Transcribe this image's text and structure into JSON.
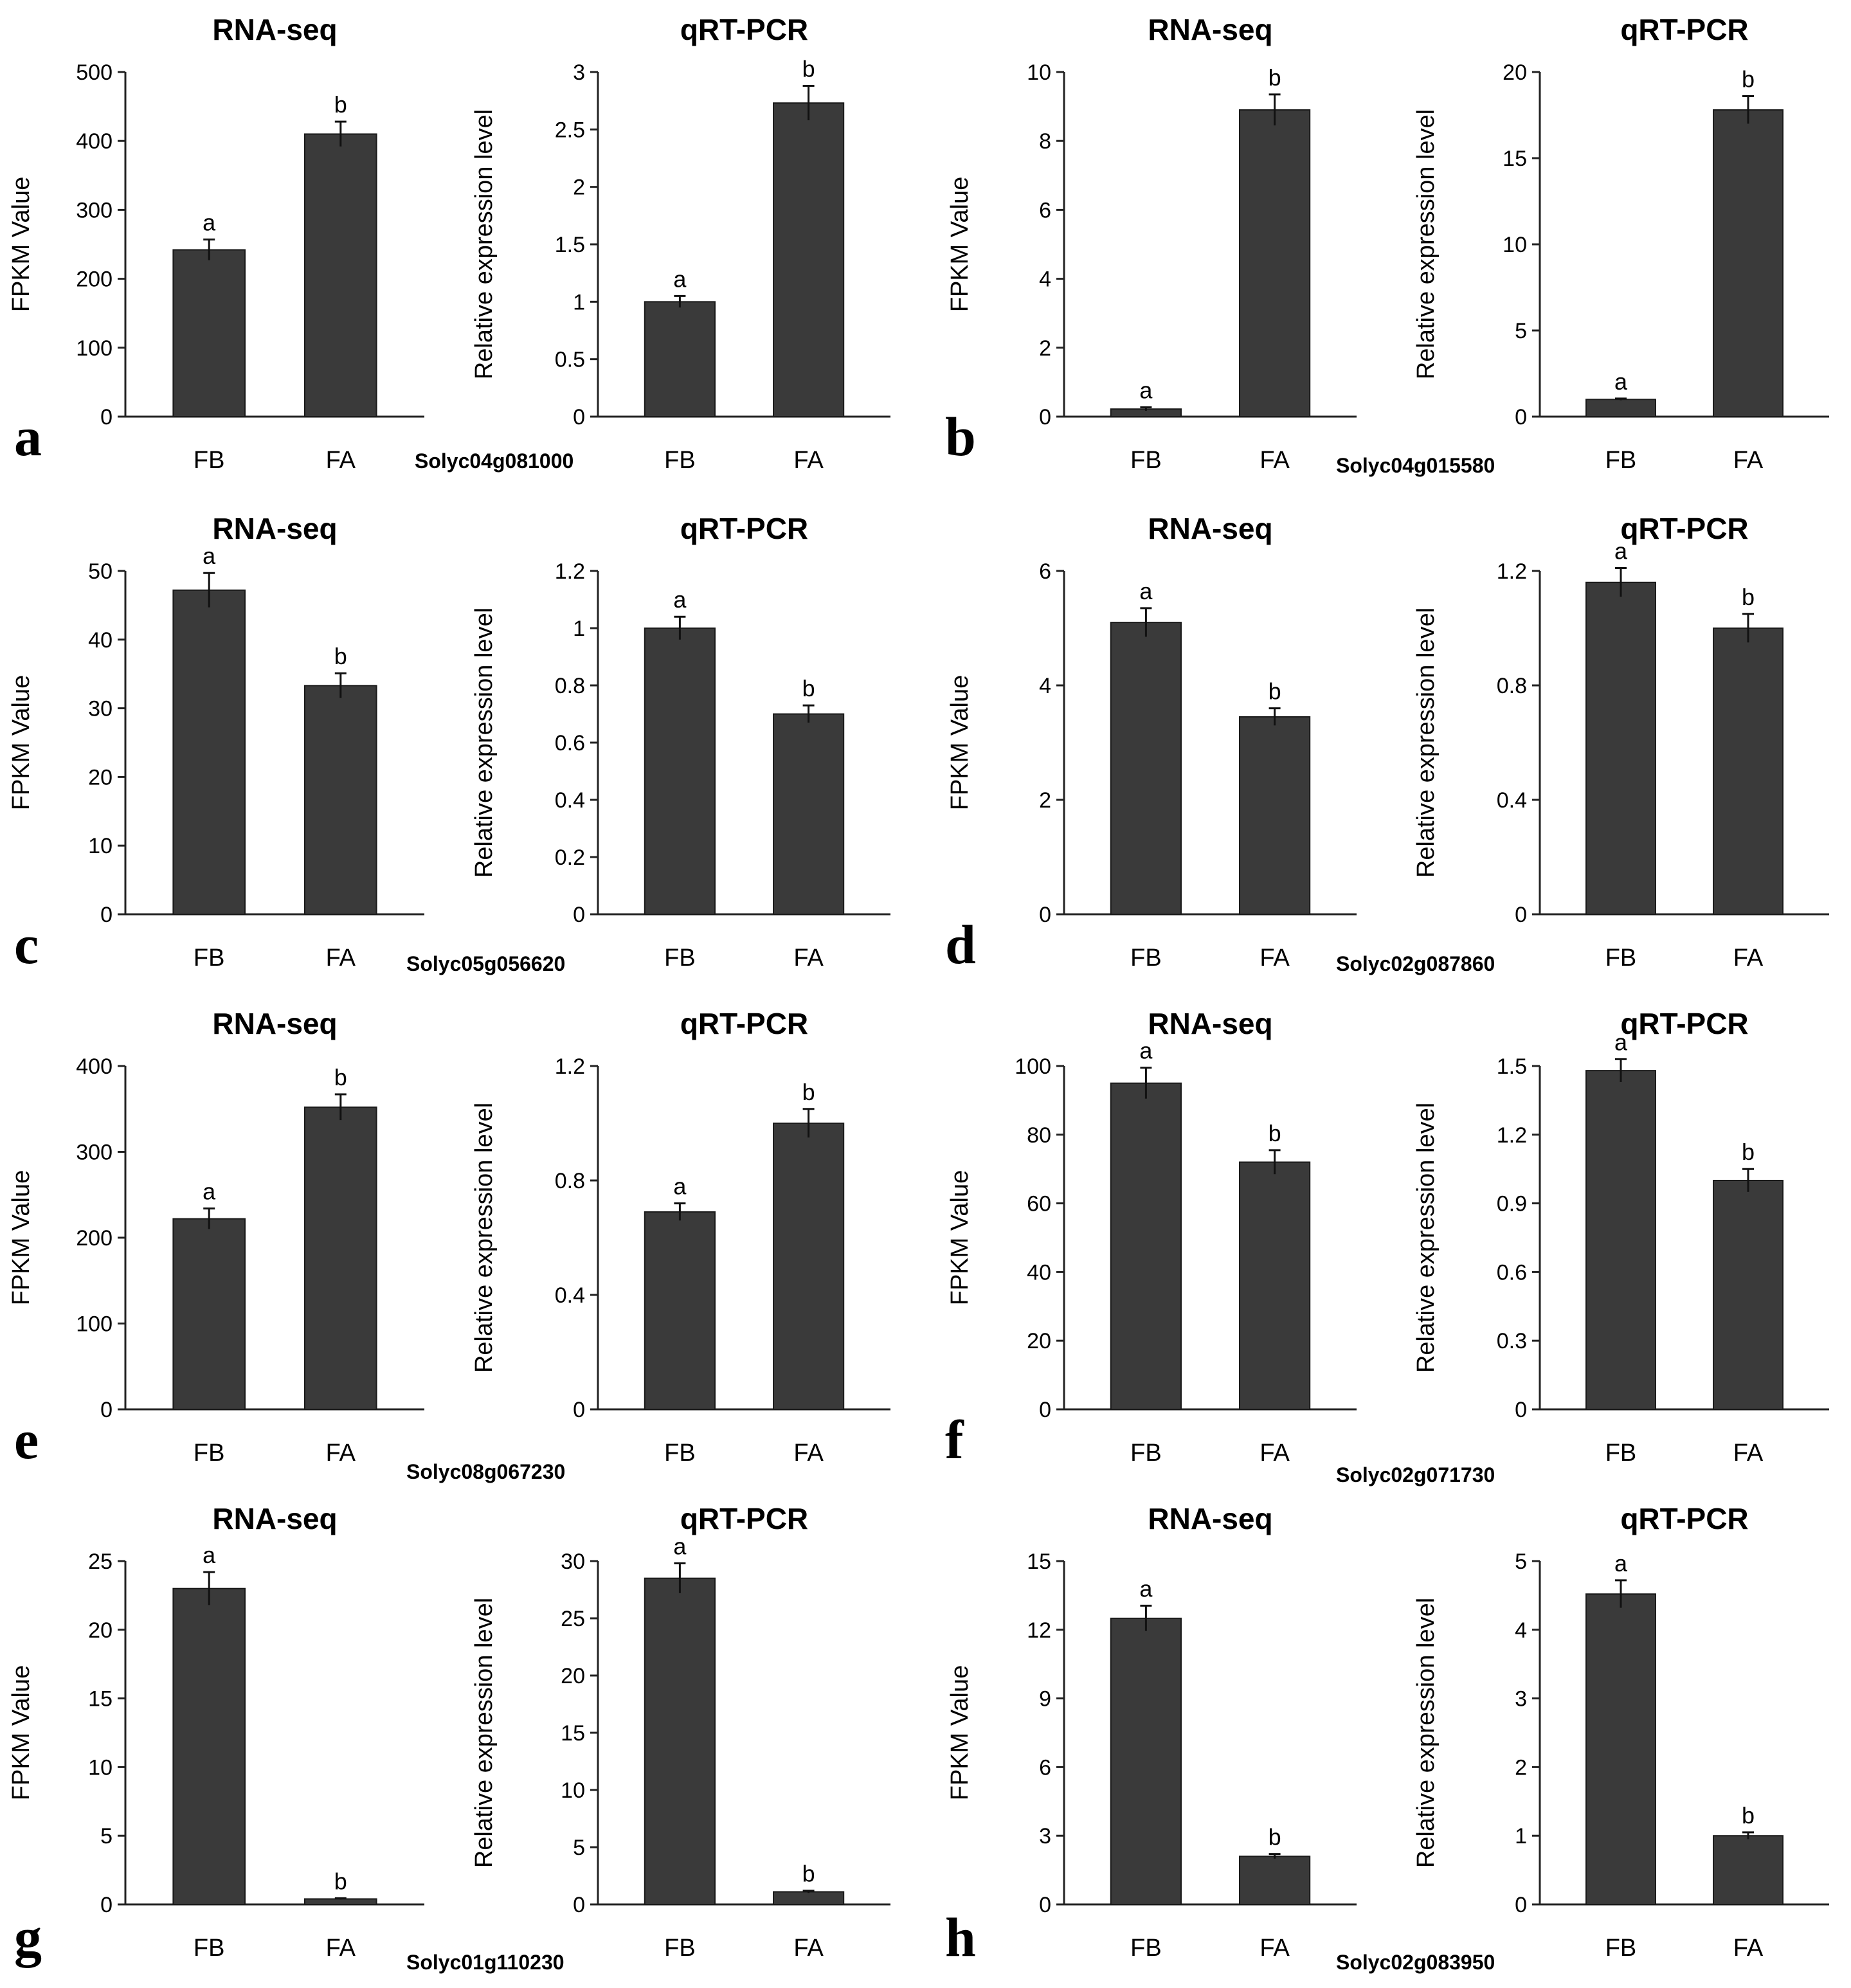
{
  "figure": {
    "panels": [
      {
        "letter": "a",
        "gene": "Solyc04g081000"
      },
      {
        "letter": "b",
        "gene": "Solyc04g015580"
      },
      {
        "letter": "c",
        "gene": "Solyc05g056620"
      },
      {
        "letter": "d",
        "gene": "Solyc02g087860"
      },
      {
        "letter": "e",
        "gene": "Solyc08g067230"
      },
      {
        "letter": "f",
        "gene": "Solyc02g071730"
      },
      {
        "letter": "g",
        "gene": "Solyc01g110230"
      },
      {
        "letter": "h",
        "gene": "Solyc02g083950"
      }
    ]
  },
  "colors": {
    "bar": "#3a3a3a",
    "axis": "#222222"
  },
  "chart_data": [
    {
      "panel": "a",
      "type": "bar",
      "title": "RNA-seq",
      "ylabel": "FPKM  Value",
      "categories": [
        "FB",
        "FA"
      ],
      "values": [
        242,
        410
      ],
      "errors": [
        15,
        18
      ],
      "sig": [
        "a",
        "b"
      ],
      "ylim": [
        0,
        500
      ],
      "yticks": [
        "0",
        "100",
        "200",
        "300",
        "400",
        "500"
      ]
    },
    {
      "panel": "a",
      "type": "bar",
      "title": "qRT-PCR",
      "ylabel": "Relative expression level",
      "categories": [
        "FB",
        "FA"
      ],
      "values": [
        1.0,
        2.73
      ],
      "errors": [
        0.05,
        0.15
      ],
      "sig": [
        "a",
        "b"
      ],
      "ylim": [
        0,
        3
      ],
      "yticks": [
        "0",
        "0.5",
        "1",
        "1.5",
        "2",
        "2.5",
        "3"
      ]
    },
    {
      "panel": "b",
      "type": "bar",
      "title": "RNA-seq",
      "ylabel": "FPKM  Value",
      "categories": [
        "FB",
        "FA"
      ],
      "values": [
        0.22,
        8.9
      ],
      "errors": [
        0.05,
        0.45
      ],
      "sig": [
        "a",
        "b"
      ],
      "ylim": [
        0,
        10
      ],
      "yticks": [
        "0",
        "2",
        "4",
        "6",
        "8",
        "10"
      ]
    },
    {
      "panel": "b",
      "type": "bar",
      "title": "qRT-PCR",
      "ylabel": "Relative expression level",
      "categories": [
        "FB",
        "FA"
      ],
      "values": [
        1.0,
        17.8
      ],
      "errors": [
        0.05,
        0.8
      ],
      "sig": [
        "a",
        "b"
      ],
      "ylim": [
        0,
        20
      ],
      "yticks": [
        "0",
        "5",
        "10",
        "15",
        "20"
      ]
    },
    {
      "panel": "c",
      "type": "bar",
      "title": "RNA-seq",
      "ylabel": "FPKM  Value",
      "categories": [
        "FB",
        "FA"
      ],
      "values": [
        47.2,
        33.3
      ],
      "errors": [
        2.5,
        1.8
      ],
      "sig": [
        "a",
        "b"
      ],
      "ylim": [
        0,
        50
      ],
      "yticks": [
        "0",
        "10",
        "20",
        "30",
        "40",
        "50"
      ]
    },
    {
      "panel": "c",
      "type": "bar",
      "title": "qRT-PCR",
      "ylabel": "Relative expression level",
      "categories": [
        "FB",
        "FA"
      ],
      "values": [
        1.0,
        0.7
      ],
      "errors": [
        0.04,
        0.03
      ],
      "sig": [
        "a",
        "b"
      ],
      "ylim": [
        0,
        1.2
      ],
      "yticks": [
        "0",
        "0.2",
        "0.4",
        "0.6",
        "0.8",
        "1",
        "1.2"
      ]
    },
    {
      "panel": "d",
      "type": "bar",
      "title": "RNA-seq",
      "ylabel": "FPKM  Value",
      "categories": [
        "FB",
        "FA"
      ],
      "values": [
        5.1,
        3.45
      ],
      "errors": [
        0.25,
        0.15
      ],
      "sig": [
        "a",
        "b"
      ],
      "ylim": [
        0,
        6
      ],
      "yticks": [
        "0",
        "2",
        "4",
        "6"
      ]
    },
    {
      "panel": "d",
      "type": "bar",
      "title": "qRT-PCR",
      "ylabel": "Relative expression level",
      "categories": [
        "FB",
        "FA"
      ],
      "values": [
        1.16,
        1.0
      ],
      "errors": [
        0.05,
        0.05
      ],
      "sig": [
        "a",
        "b"
      ],
      "ylim": [
        0,
        1.2
      ],
      "yticks": [
        "0",
        "0.4",
        "0.8",
        "1.2"
      ]
    },
    {
      "panel": "e",
      "type": "bar",
      "title": "RNA-seq",
      "ylabel": "FPKM  Value",
      "categories": [
        "FB",
        "FA"
      ],
      "values": [
        222,
        352
      ],
      "errors": [
        12,
        15
      ],
      "sig": [
        "a",
        "b"
      ],
      "ylim": [
        0,
        400
      ],
      "yticks": [
        "0",
        "100",
        "200",
        "300",
        "400"
      ]
    },
    {
      "panel": "e",
      "type": "bar",
      "title": "qRT-PCR",
      "ylabel": "Relative expression level",
      "categories": [
        "FB",
        "FA"
      ],
      "values": [
        0.69,
        1.0
      ],
      "errors": [
        0.03,
        0.05
      ],
      "sig": [
        "a",
        "b"
      ],
      "ylim": [
        0,
        1.2
      ],
      "yticks": [
        "0",
        "0.4",
        "0.8",
        "1.2"
      ]
    },
    {
      "panel": "f",
      "type": "bar",
      "title": "RNA-seq",
      "ylabel": "FPKM  Value",
      "categories": [
        "FB",
        "FA"
      ],
      "values": [
        95,
        72
      ],
      "errors": [
        4.5,
        3.5
      ],
      "sig": [
        "a",
        "b"
      ],
      "ylim": [
        0,
        100
      ],
      "yticks": [
        "0",
        "20",
        "40",
        "60",
        "80",
        "100"
      ]
    },
    {
      "panel": "f",
      "type": "bar",
      "title": "qRT-PCR",
      "ylabel": "Relative expression level",
      "categories": [
        "FB",
        "FA"
      ],
      "values": [
        1.48,
        1.0
      ],
      "errors": [
        0.05,
        0.05
      ],
      "sig": [
        "a",
        "b"
      ],
      "ylim": [
        0,
        1.5
      ],
      "yticks": [
        "0",
        "0.3",
        "0.6",
        "0.9",
        "1.2",
        "1.5"
      ]
    },
    {
      "panel": "g",
      "type": "bar",
      "title": "RNA-seq",
      "ylabel": "FPKM  Value",
      "categories": [
        "FB",
        "FA"
      ],
      "values": [
        23.0,
        0.4
      ],
      "errors": [
        1.2,
        0.05
      ],
      "sig": [
        "a",
        "b"
      ],
      "ylim": [
        0,
        25
      ],
      "yticks": [
        "0",
        "5",
        "10",
        "15",
        "20",
        "25"
      ]
    },
    {
      "panel": "g",
      "type": "bar",
      "title": "qRT-PCR",
      "ylabel": "Relative expression level",
      "categories": [
        "FB",
        "FA"
      ],
      "values": [
        28.5,
        1.1
      ],
      "errors": [
        1.3,
        0.1
      ],
      "sig": [
        "a",
        "b"
      ],
      "ylim": [
        0,
        30
      ],
      "yticks": [
        "0",
        "5",
        "10",
        "15",
        "20",
        "25",
        "30"
      ]
    },
    {
      "panel": "h",
      "type": "bar",
      "title": "RNA-seq",
      "ylabel": "FPKM  Value",
      "categories": [
        "FB",
        "FA"
      ],
      "values": [
        12.5,
        2.1
      ],
      "errors": [
        0.55,
        0.1
      ],
      "sig": [
        "a",
        "b"
      ],
      "ylim": [
        0,
        15
      ],
      "yticks": [
        "0",
        "3",
        "6",
        "9",
        "12",
        "15"
      ]
    },
    {
      "panel": "h",
      "type": "bar",
      "title": "qRT-PCR",
      "ylabel": "Relative expression level",
      "categories": [
        "FB",
        "FA"
      ],
      "values": [
        4.52,
        1.0
      ],
      "errors": [
        0.2,
        0.05
      ],
      "sig": [
        "a",
        "b"
      ],
      "ylim": [
        0,
        5
      ],
      "yticks": [
        "0",
        "1",
        "2",
        "3",
        "4",
        "5"
      ]
    }
  ]
}
